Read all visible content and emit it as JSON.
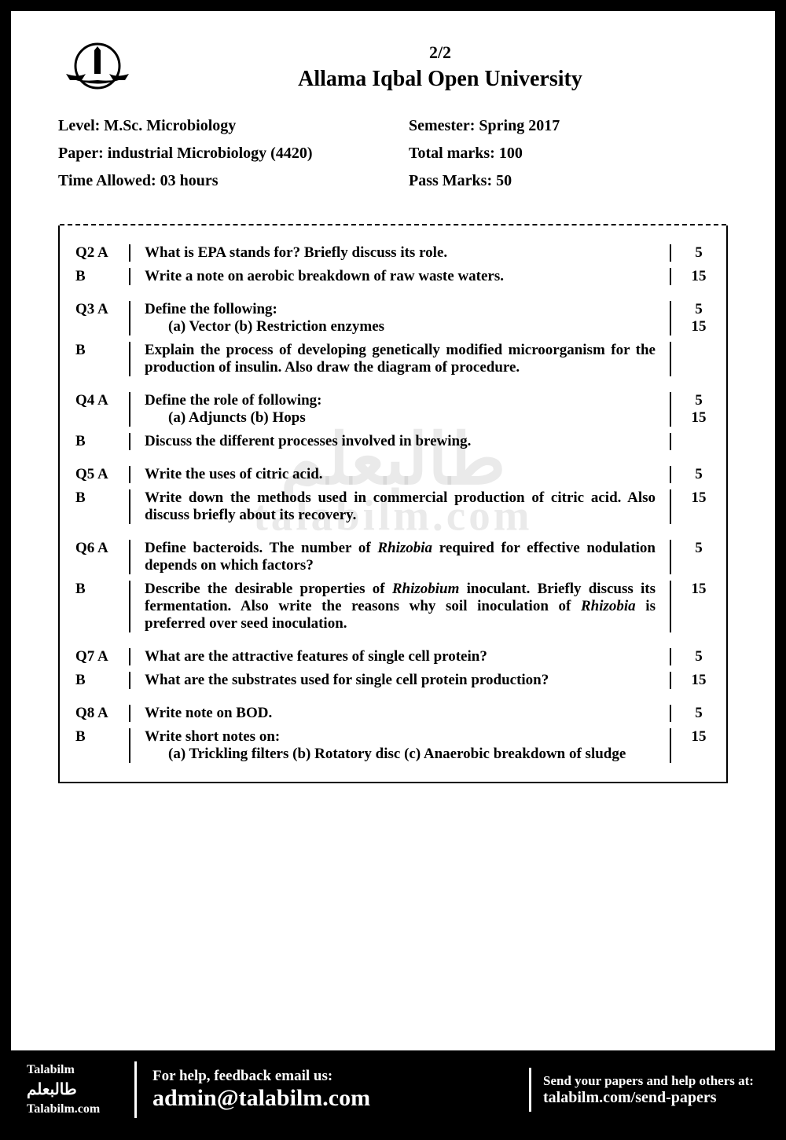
{
  "header": {
    "page_num": "2/2",
    "university": "Allama Iqbal Open University"
  },
  "info": {
    "level": "Level: M.Sc. Microbiology",
    "semester": "Semester: Spring 2017",
    "paper": "Paper: industrial Microbiology (4420)",
    "total_marks": "Total marks: 100",
    "time": "Time Allowed: 03 hours",
    "pass_marks": "Pass Marks: 50"
  },
  "questions": [
    {
      "parts": [
        {
          "label": "Q2 A",
          "text": "What is EPA stands for? Briefly discuss its role.",
          "marks": "5"
        },
        {
          "label": "B",
          "text": "Write a note on aerobic breakdown of raw waste waters.",
          "marks": "15"
        }
      ]
    },
    {
      "parts": [
        {
          "label": "Q3 A",
          "text": "Define the following:",
          "sub": "(a) Vector   (b) Restriction enzymes",
          "marks": "5",
          "marks2": "15"
        },
        {
          "label": "B",
          "text": "Explain the process of developing genetically modified microorganism for the production of insulin. Also draw the diagram of procedure.",
          "marks": ""
        }
      ]
    },
    {
      "parts": [
        {
          "label": "Q4 A",
          "text": "Define the role of following:",
          "sub": "(a) Adjuncts  (b) Hops",
          "marks": "5",
          "marks2": "15"
        },
        {
          "label": "B",
          "text": "Discuss the different processes involved in brewing.",
          "marks": ""
        }
      ]
    },
    {
      "parts": [
        {
          "label": "Q5 A",
          "text": "Write the uses of citric acid.",
          "marks": "5"
        },
        {
          "label": "B",
          "text": "Write down the methods used in commercial production of citric acid. Also discuss briefly about its recovery.",
          "marks": "15"
        }
      ]
    },
    {
      "parts": [
        {
          "label": "Q6 A",
          "text_html": "Define bacteroids. The number of <span class=\"italic\">Rhizobia</span> required for effective nodulation depends on which factors?",
          "marks": "5"
        },
        {
          "label": "B",
          "text_html": "Describe the desirable properties of <span class=\"italic\">Rhizobium</span> inoculant. Briefly discuss its fermentation. Also write the reasons why soil inoculation of <span class=\"italic\">Rhizobia</span> is preferred over seed inoculation.",
          "marks": "15"
        }
      ]
    },
    {
      "parts": [
        {
          "label": "Q7 A",
          "text": "What are the attractive features of single cell protein?",
          "marks": "5"
        },
        {
          "label": "B",
          "text": "What are the substrates used for single cell protein production?",
          "marks": "15"
        }
      ]
    },
    {
      "parts": [
        {
          "label": "Q8 A",
          "text": "Write note on BOD.",
          "marks": "5"
        },
        {
          "label": "B",
          "text": "Write short notes on:",
          "sub": "(a) Trickling filters  (b) Rotatory disc (c) Anaerobic breakdown of sludge",
          "marks": "15"
        }
      ]
    }
  ],
  "watermark": {
    "text1": "طالبعلم",
    "text2": "talabilm.com"
  },
  "footer": {
    "left_line1": "Talabilm",
    "left_line2": "طالبعلم",
    "left_line3": "Talabilm.com",
    "mid_line1": "For help, feedback email us:",
    "mid_line2": "admin@talabilm.com",
    "right_line1": "Send your papers and help others at:",
    "right_line2": "talabilm.com/send-papers"
  },
  "colors": {
    "border": "#000000",
    "background": "#ffffff",
    "text": "#000000",
    "watermark": "rgba(150,150,150,0.2)",
    "footer_bg": "#000000",
    "footer_text": "#ffffff"
  }
}
